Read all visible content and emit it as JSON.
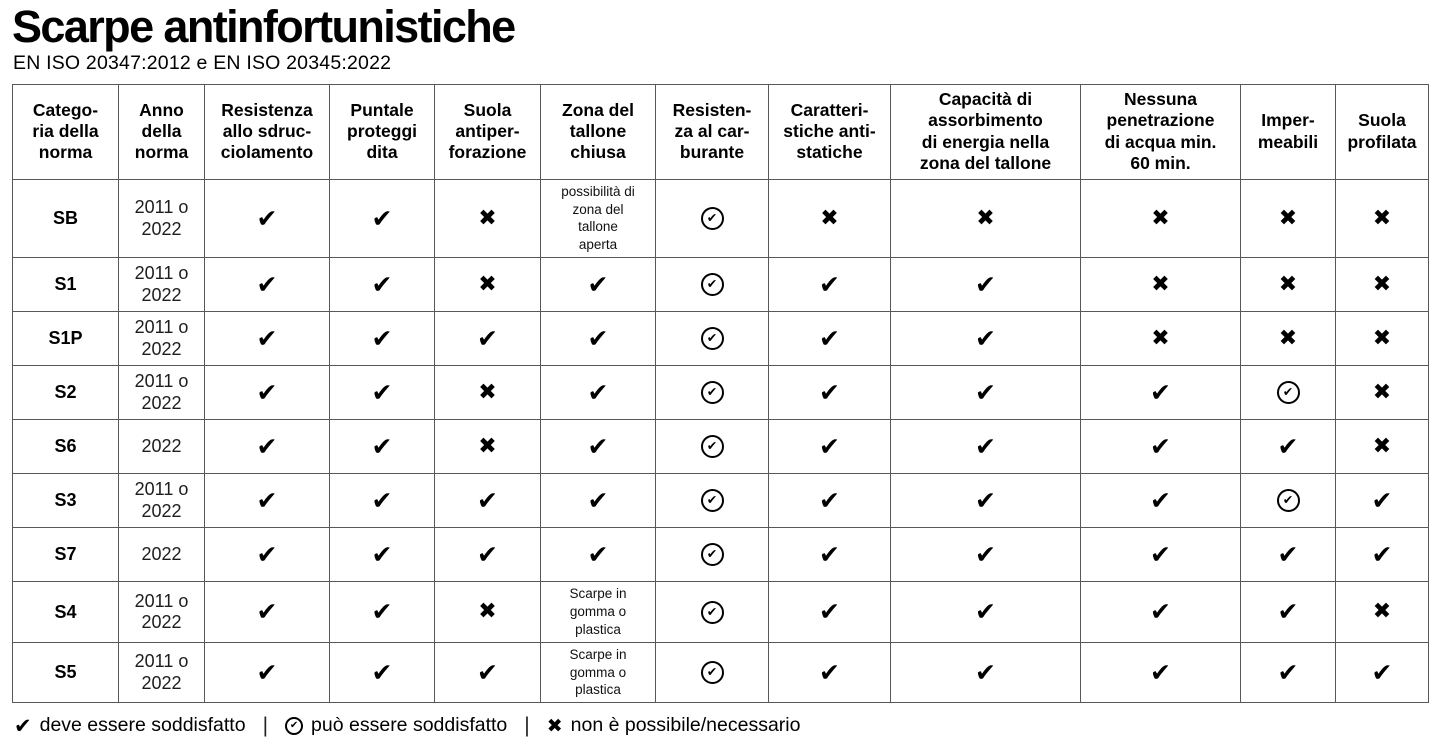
{
  "chart_data": {
    "type": "table",
    "title": "Scarpe antinfortunistiche",
    "subtitle": "EN ISO 20347:2012 e EN ISO 20345:2022",
    "columns": [
      "Catego-\nria della\nnorma",
      "Anno\ndella\nnorma",
      "Resistenza\nallo sdruc-\nciolamento",
      "Puntale\nproteggi\ndita",
      "Suola\nantiper-\nforazione",
      "Zona del\ntallone\nchiusa",
      "Resisten-\nza al car-\nburante",
      "Caratteri-\nstiche anti-\nstatiche",
      "Capacità di\nassorbimento\ndi energia nella\nzona del tallone",
      "Nessuna\npenetrazione\ndi acqua min.\n60 min.",
      "Imper-\nmeabili",
      "Suola\nprofilata"
    ],
    "rows": [
      {
        "category": "SB",
        "year": "2011 o\n2022",
        "cells": [
          "check",
          "check",
          "cross",
          {
            "note": "possibilità di\nzona del\ntallone\naperta"
          },
          "circle-check",
          "cross",
          "cross",
          "cross",
          "cross",
          "cross"
        ]
      },
      {
        "category": "S1",
        "year": "2011 o\n2022",
        "cells": [
          "check",
          "check",
          "cross",
          "check",
          "circle-check",
          "check",
          "check",
          "cross",
          "cross",
          "cross"
        ]
      },
      {
        "category": "S1P",
        "year": "2011 o\n2022",
        "cells": [
          "check",
          "check",
          "check",
          "check",
          "circle-check",
          "check",
          "check",
          "cross",
          "cross",
          "cross"
        ]
      },
      {
        "category": "S2",
        "year": "2011 o\n2022",
        "cells": [
          "check",
          "check",
          "cross",
          "check",
          "circle-check",
          "check",
          "check",
          "check",
          "circle-check",
          "cross"
        ]
      },
      {
        "category": "S6",
        "year": "2022",
        "cells": [
          "check",
          "check",
          "cross",
          "check",
          "circle-check",
          "check",
          "check",
          "check",
          "check",
          "cross"
        ]
      },
      {
        "category": "S3",
        "year": "2011 o\n2022",
        "cells": [
          "check",
          "check",
          "check",
          "check",
          "circle-check",
          "check",
          "check",
          "check",
          "circle-check",
          "check"
        ]
      },
      {
        "category": "S7",
        "year": "2022",
        "cells": [
          "check",
          "check",
          "check",
          "check",
          "circle-check",
          "check",
          "check",
          "check",
          "check",
          "check"
        ]
      },
      {
        "category": "S4",
        "year": "2011 o\n2022",
        "cells": [
          "check",
          "check",
          "cross",
          {
            "note": "Scarpe in\ngomma o\nplastica"
          },
          "circle-check",
          "check",
          "check",
          "check",
          "check",
          "cross"
        ]
      },
      {
        "category": "S5",
        "year": "2011 o\n2022",
        "cells": [
          "check",
          "check",
          "check",
          {
            "note": "Scarpe in\ngomma o\nplastica"
          },
          "circle-check",
          "check",
          "check",
          "check",
          "check",
          "check"
        ]
      }
    ],
    "legend": [
      {
        "icon": "check",
        "label": "deve essere soddisfatto"
      },
      {
        "icon": "circle-check",
        "label": "può essere soddisfatto"
      },
      {
        "icon": "cross",
        "label": "non è possibile/necessario"
      }
    ],
    "legend_separator": "|"
  },
  "symbols": {
    "check": "✔",
    "cross": "✖"
  },
  "colors": {
    "text": "#000000",
    "border": "#58585a",
    "background": "#ffffff"
  }
}
